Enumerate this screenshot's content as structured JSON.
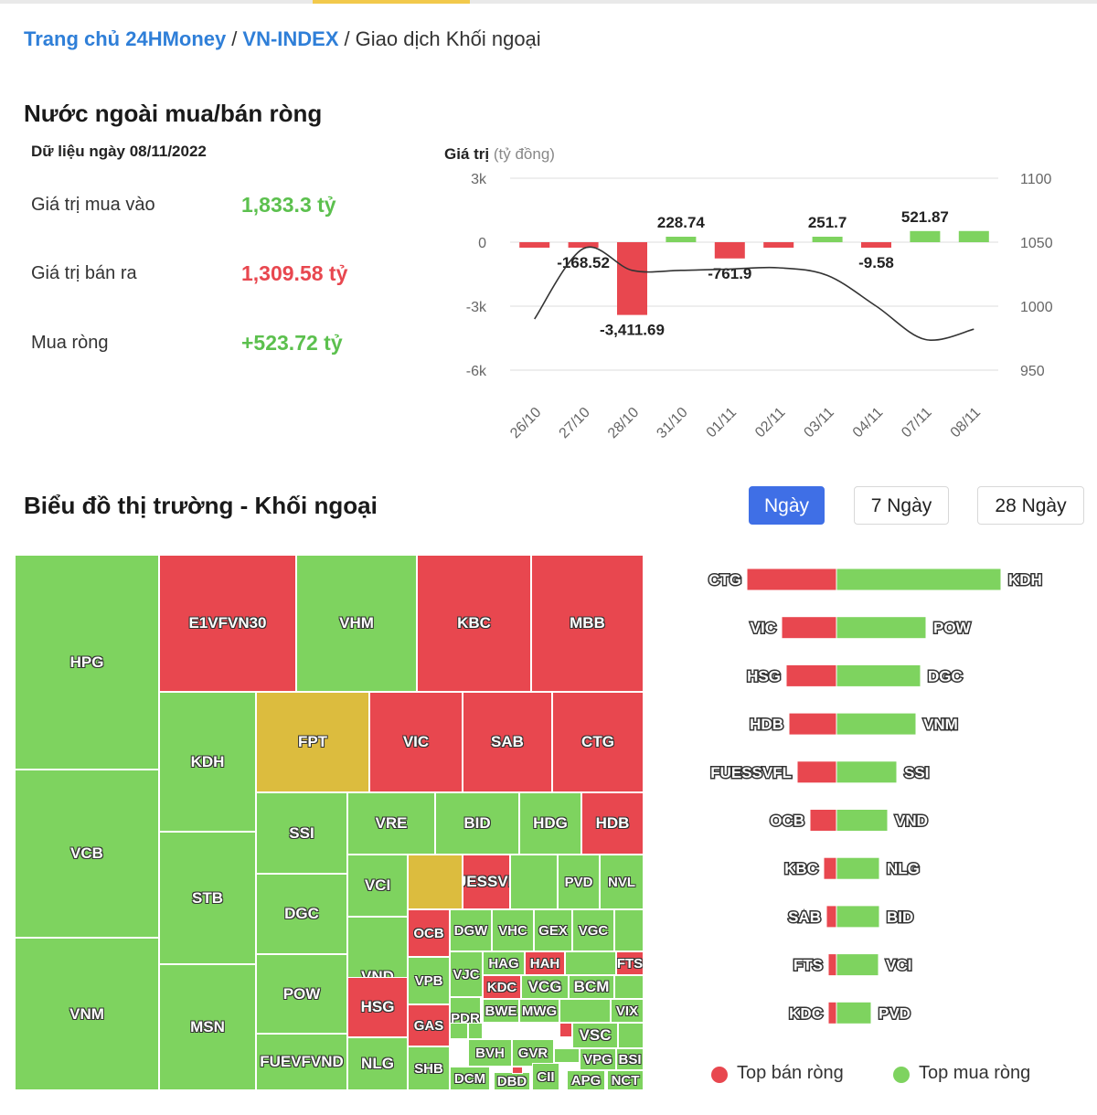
{
  "breadcrumb": {
    "home": "Trang chủ 24HMoney",
    "index": "VN-INDEX",
    "current": "Giao dịch Khối ngoại",
    "separator": "/"
  },
  "summary": {
    "title": "Nước ngoài mua/bán ròng",
    "as_of": "Dữ liệu ngày 08/11/2022",
    "buy_label": "Giá trị mua vào",
    "buy_value": "1,833.3 tỷ",
    "sell_label": "Giá trị bán ra",
    "sell_value": "1,309.58 tỷ",
    "net_label": "Mua ròng",
    "net_value": "+523.72 tỷ"
  },
  "market": {
    "title": "Biểu đồ thị trường - Khối ngoại",
    "tabs": [
      "Ngày",
      "7 Ngày",
      "28 Ngày"
    ],
    "active_tab": "Ngày"
  },
  "legend": {
    "sell": "Top bán ròng",
    "buy": "Top mua ròng"
  },
  "colors": {
    "buy": "#7ed35f",
    "sell": "#e8474f",
    "neutral": "#dcbc3e",
    "accent": "#3f6fe6",
    "line": "#333333",
    "grid": "#dddddd"
  },
  "chart_data": [
    {
      "type": "bar",
      "title": "Giá trị (tỷ đồng)",
      "title_bold": "Giá trị",
      "title_unit": "(tỷ đồng)",
      "categories": [
        "26/10",
        "27/10",
        "28/10",
        "31/10",
        "01/11",
        "02/11",
        "03/11",
        "04/11",
        "07/11",
        "08/11"
      ],
      "series": [
        {
          "name": "Mua/bán ròng",
          "axis": "left",
          "values": [
            -80,
            -168.52,
            -3411.69,
            228.74,
            -761.9,
            -180,
            251.7,
            -9.58,
            521.87,
            523.72
          ],
          "labels": [
            "",
            "-168.52",
            "-3,411.69",
            "228.74",
            "-761.9",
            "",
            "251.7",
            "-9.58",
            "521.87",
            ""
          ]
        },
        {
          "name": "VN-INDEX",
          "type": "line",
          "axis": "right",
          "values": [
            990,
            1045,
            1028,
            1028,
            1029,
            1030,
            1024,
            1000,
            974,
            982
          ]
        }
      ],
      "ylim": [
        -6000,
        3000
      ],
      "yticks": [
        "3k",
        "0",
        "-3k",
        "-6k"
      ],
      "ytick_values": [
        3000,
        0,
        -3000,
        -6000
      ],
      "y2lim": [
        950,
        1100
      ],
      "y2ticks": [
        "1100",
        "1050",
        "1000",
        "950"
      ],
      "y2tick_values": [
        1100,
        1050,
        1000,
        950
      ]
    },
    {
      "type": "treemap",
      "title": "Biểu đồ thị trường - Khối ngoại",
      "items": [
        {
          "n": "HPG",
          "c": "g",
          "r": [
            0,
            0,
            158,
            235
          ]
        },
        {
          "n": "VCB",
          "c": "g",
          "r": [
            0,
            235,
            158,
            184
          ]
        },
        {
          "n": "VNM",
          "c": "g",
          "r": [
            0,
            419,
            158,
            167
          ]
        },
        {
          "n": "E1VFVN30",
          "c": "r",
          "r": [
            158,
            0,
            150,
            150
          ]
        },
        {
          "n": "VHM",
          "c": "g",
          "r": [
            308,
            0,
            132,
            150
          ]
        },
        {
          "n": "KBC",
          "c": "r",
          "r": [
            440,
            0,
            125,
            150
          ]
        },
        {
          "n": "MBB",
          "c": "r",
          "r": [
            565,
            0,
            123,
            150
          ]
        },
        {
          "n": "KDH",
          "c": "g",
          "r": [
            158,
            150,
            106,
            153
          ]
        },
        {
          "n": "STB",
          "c": "g",
          "r": [
            158,
            303,
            106,
            145
          ]
        },
        {
          "n": "MSN",
          "c": "g",
          "r": [
            158,
            448,
            106,
            138
          ]
        },
        {
          "n": "FPT",
          "c": "y",
          "r": [
            264,
            150,
            124,
            110
          ]
        },
        {
          "n": "VIC",
          "c": "r",
          "r": [
            388,
            150,
            102,
            110
          ]
        },
        {
          "n": "SAB",
          "c": "r",
          "r": [
            490,
            150,
            98,
            110
          ]
        },
        {
          "n": "CTG",
          "c": "r",
          "r": [
            588,
            150,
            100,
            110
          ]
        },
        {
          "n": "SSI",
          "c": "g",
          "r": [
            264,
            260,
            100,
            89
          ]
        },
        {
          "n": "DGC",
          "c": "g",
          "r": [
            264,
            349,
            100,
            88
          ]
        },
        {
          "n": "POW",
          "c": "g",
          "r": [
            264,
            437,
            100,
            87
          ]
        },
        {
          "n": "FUEVFVND",
          "c": "g",
          "r": [
            264,
            524,
            100,
            62
          ]
        },
        {
          "n": "VRE",
          "c": "g",
          "r": [
            364,
            260,
            96,
            68
          ]
        },
        {
          "n": "BID",
          "c": "g",
          "r": [
            460,
            260,
            92,
            68
          ]
        },
        {
          "n": "HDG",
          "c": "g",
          "r": [
            552,
            260,
            68,
            68
          ]
        },
        {
          "n": "HDB",
          "c": "r",
          "r": [
            620,
            260,
            68,
            68
          ]
        },
        {
          "n": "VCI",
          "c": "g",
          "r": [
            364,
            328,
            66,
            68
          ]
        },
        {
          "n": "VND",
          "c": "g",
          "r": [
            364,
            396,
            66,
            132
          ]
        },
        {
          "n": "HSG",
          "c": "r",
          "r": [
            364,
            462,
            66,
            66
          ]
        },
        {
          "n": "NLG",
          "c": "g",
          "r": [
            364,
            528,
            66,
            58
          ]
        },
        {
          "n": "",
          "c": "y",
          "r": [
            430,
            328,
            60,
            60
          ]
        },
        {
          "n": "FUESSVFL",
          "c": "r",
          "r": [
            490,
            328,
            52,
            60
          ]
        },
        {
          "n": "",
          "c": "g",
          "r": [
            542,
            328,
            52,
            60
          ]
        },
        {
          "n": "PVD",
          "c": "g",
          "r": [
            594,
            328,
            46,
            60
          ]
        },
        {
          "n": "NVL",
          "c": "g",
          "r": [
            640,
            328,
            48,
            60
          ]
        },
        {
          "n": "OCB",
          "c": "r",
          "r": [
            430,
            388,
            46,
            52
          ]
        },
        {
          "n": "DGW",
          "c": "g",
          "r": [
            476,
            388,
            46,
            46
          ]
        },
        {
          "n": "VHC",
          "c": "g",
          "r": [
            522,
            388,
            46,
            46
          ]
        },
        {
          "n": "GEX",
          "c": "g",
          "r": [
            568,
            388,
            42,
            46
          ]
        },
        {
          "n": "VGC",
          "c": "g",
          "r": [
            610,
            388,
            46,
            46
          ]
        },
        {
          "n": "",
          "c": "g",
          "r": [
            656,
            388,
            32,
            46
          ]
        },
        {
          "n": "VPB",
          "c": "g",
          "r": [
            430,
            440,
            46,
            52
          ]
        },
        {
          "n": "VJC",
          "c": "g",
          "r": [
            476,
            434,
            36,
            50
          ]
        },
        {
          "n": "HAG",
          "c": "g",
          "r": [
            512,
            434,
            46,
            26
          ]
        },
        {
          "n": "HAH",
          "c": "r",
          "r": [
            558,
            434,
            44,
            26
          ]
        },
        {
          "n": "",
          "c": "g",
          "r": [
            602,
            434,
            56,
            26
          ]
        },
        {
          "n": "FTS",
          "c": "r",
          "r": [
            658,
            434,
            30,
            26
          ]
        },
        {
          "n": "GAS",
          "c": "r",
          "r": [
            430,
            492,
            46,
            46
          ]
        },
        {
          "n": "PDR",
          "c": "g",
          "r": [
            476,
            484,
            34,
            46
          ]
        },
        {
          "n": "KDC",
          "c": "r",
          "r": [
            512,
            460,
            42,
            26
          ]
        },
        {
          "n": "VCG",
          "c": "g",
          "r": [
            554,
            460,
            52,
            26
          ]
        },
        {
          "n": "BCM",
          "c": "g",
          "r": [
            606,
            460,
            50,
            26
          ]
        },
        {
          "n": "",
          "c": "g",
          "r": [
            656,
            460,
            32,
            26
          ]
        },
        {
          "n": "BWE",
          "c": "g",
          "r": [
            512,
            486,
            40,
            26
          ]
        },
        {
          "n": "MWG",
          "c": "g",
          "r": [
            552,
            486,
            44,
            26
          ]
        },
        {
          "n": "",
          "c": "g",
          "r": [
            596,
            486,
            56,
            26
          ]
        },
        {
          "n": "VIX",
          "c": "g",
          "r": [
            652,
            486,
            36,
            26
          ]
        },
        {
          "n": "VSC",
          "c": "g",
          "r": [
            610,
            512,
            50,
            28
          ]
        },
        {
          "n": "",
          "c": "g",
          "r": [
            660,
            512,
            28,
            28
          ]
        },
        {
          "n": "SHB",
          "c": "g",
          "r": [
            430,
            538,
            46,
            48
          ]
        },
        {
          "n": "BVH",
          "c": "g",
          "r": [
            496,
            530,
            48,
            30
          ]
        },
        {
          "n": "GVR",
          "c": "g",
          "r": [
            544,
            530,
            46,
            30
          ]
        },
        {
          "n": "VPG",
          "c": "g",
          "r": [
            618,
            540,
            40,
            24
          ]
        },
        {
          "n": "BSI",
          "c": "g",
          "r": [
            658,
            540,
            30,
            24
          ]
        },
        {
          "n": "DCM",
          "c": "g",
          "r": [
            476,
            560,
            44,
            26
          ]
        },
        {
          "n": "DBD",
          "c": "g",
          "r": [
            524,
            566,
            40,
            20
          ]
        },
        {
          "n": "CII",
          "c": "g",
          "r": [
            566,
            556,
            30,
            30
          ]
        },
        {
          "n": "APG",
          "c": "g",
          "r": [
            604,
            564,
            42,
            22
          ]
        },
        {
          "n": "NCT",
          "c": "g",
          "r": [
            648,
            564,
            40,
            22
          ]
        },
        {
          "n": "",
          "c": "g",
          "r": [
            476,
            512,
            20,
            18
          ]
        },
        {
          "n": "",
          "c": "g",
          "r": [
            496,
            512,
            16,
            18
          ]
        },
        {
          "n": "",
          "c": "r",
          "r": [
            544,
            560,
            12,
            8
          ]
        },
        {
          "n": "",
          "c": "g",
          "r": [
            590,
            540,
            28,
            16
          ]
        },
        {
          "n": "",
          "c": "r",
          "r": [
            596,
            512,
            14,
            16
          ]
        }
      ]
    },
    {
      "type": "bar",
      "orientation": "horizontal",
      "title": "Top bán ròng / Top mua ròng",
      "sell_names": [
        "CTG",
        "VIC",
        "HSG",
        "HDB",
        "FUESSVFL",
        "OCB",
        "KBC",
        "SAB",
        "FTS",
        "KDC"
      ],
      "sell_values": [
        98,
        60,
        55,
        52,
        43,
        29,
        14,
        11,
        9,
        9
      ],
      "buy_names": [
        "KDH",
        "POW",
        "DGC",
        "VNM",
        "SSI",
        "VND",
        "NLG",
        "BID",
        "VCI",
        "PVD"
      ],
      "buy_values": [
        180,
        98,
        92,
        87,
        66,
        56,
        47,
        47,
        46,
        38
      ]
    }
  ]
}
